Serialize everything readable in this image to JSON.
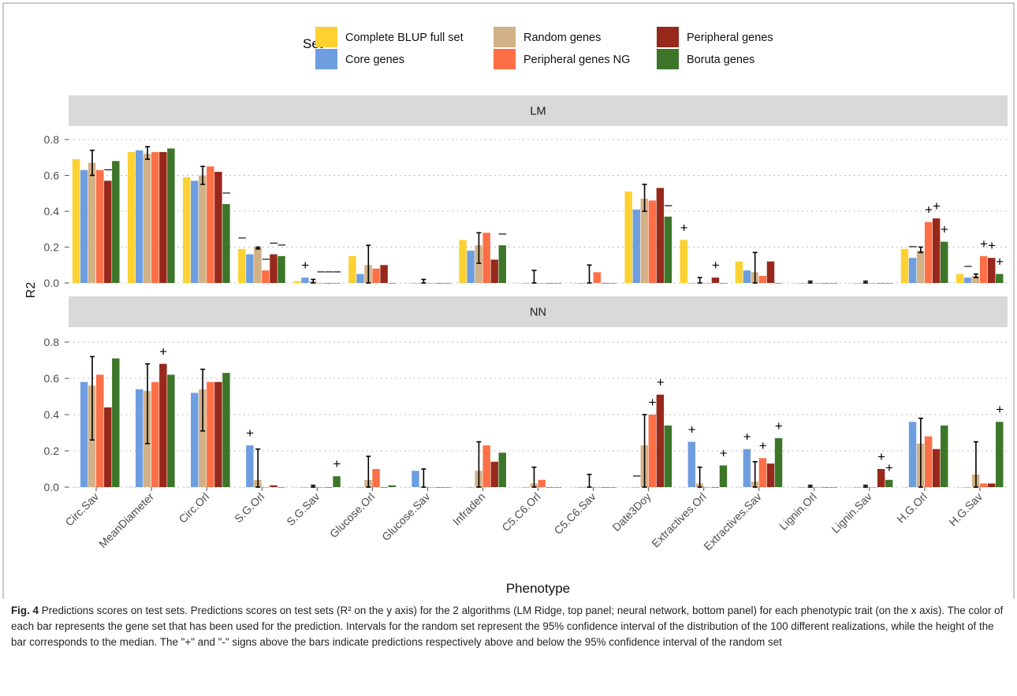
{
  "figure": {
    "caption_label": "Fig. 4",
    "caption_text": "Predictions scores on test sets. Predictions scores on test sets (R² on the y axis) for the 2 algorithms (LM Ridge, top panel; neural network, bottom panel) for each phenotypic trait (on the x axis). The color of each bar represents the gene set that has been used for the prediction. Intervals for the random set represent the 95% confidence interval of the distribution of the 100 different realizations, while the height of the bar corresponds to the median. The \"+\" and \"-\" signs above the bars indicate predictions respectively above and below the 95% confidence interval of the random set"
  },
  "chart_data": {
    "type": "bar",
    "legend_title": "Set",
    "legend_position": "top",
    "xlabel": "Phenotype",
    "ylabel": "R2",
    "ylim": [
      0,
      0.8
    ],
    "yticks": [
      "0.0",
      "0.2",
      "0.4",
      "0.6",
      "0.8"
    ],
    "grid": true,
    "categories": [
      "Circ.Sav",
      "MeanDiameter",
      "Circ.Orl",
      "S.G.Orl",
      "S.G.Sav",
      "Glucose.Orl",
      "Glucose.Sav",
      "Infraden",
      "C5.C6.Orl",
      "C5.C6.Sav",
      "Date3Doy",
      "Extractives.Orl",
      "Extractives.Sav",
      "Lignin.Orl",
      "Lignin.Sav",
      "H.G.Orl",
      "H.G.Sav"
    ],
    "series_order": [
      "Complete BLUP full set",
      "Core genes",
      "Random genes",
      "Peripheral genes NG",
      "Peripheral genes",
      "Boruta genes"
    ],
    "legend": [
      {
        "name": "Complete BLUP full set",
        "color": "#fcd131"
      },
      {
        "name": "Core genes",
        "color": "#6e9ee0"
      },
      {
        "name": "Random genes",
        "color": "#d2b187"
      },
      {
        "name": "Peripheral genes NG",
        "color": "#fd6f46"
      },
      {
        "name": "Peripheral genes",
        "color": "#97281b"
      },
      {
        "name": "Boruta genes",
        "color": "#3d7629"
      }
    ],
    "panels": [
      {
        "title": "LM",
        "values": [
          [
            0.69,
            0.63,
            0.67,
            0.63,
            0.57,
            0.68
          ],
          [
            0.73,
            0.74,
            0.72,
            0.73,
            0.73,
            0.75
          ],
          [
            0.59,
            0.57,
            0.6,
            0.65,
            0.62,
            0.44
          ],
          [
            0.19,
            0.16,
            0.2,
            0.07,
            0.16,
            0.15
          ],
          [
            0.01,
            0.03,
            0.01,
            0.0,
            0.0,
            0.0
          ],
          [
            0.15,
            0.05,
            0.1,
            0.08,
            0.1,
            0.0
          ],
          [
            0.0,
            0.0,
            0.0,
            0.0,
            0.0,
            0.0
          ],
          [
            0.24,
            0.18,
            0.21,
            0.28,
            0.13,
            0.21
          ],
          [
            0.0,
            0.0,
            0.0,
            0.0,
            0.0,
            0.0
          ],
          [
            0.0,
            0.0,
            0.0,
            0.06,
            0.0,
            0.0
          ],
          [
            0.51,
            0.41,
            0.47,
            0.46,
            0.53,
            0.37
          ],
          [
            0.24,
            0.0,
            0.0,
            0.0,
            0.03,
            0.0
          ],
          [
            0.12,
            0.07,
            0.06,
            0.04,
            0.12,
            0.0
          ],
          [
            0.0,
            0.0,
            0.0,
            0.0,
            0.0,
            0.0
          ],
          [
            0.0,
            0.0,
            0.0,
            0.0,
            0.0,
            0.0
          ],
          [
            0.19,
            0.14,
            0.18,
            0.34,
            0.36,
            0.23
          ],
          [
            0.05,
            0.03,
            0.04,
            0.15,
            0.14,
            0.05
          ]
        ],
        "random_ci": [
          [
            0.6,
            0.74
          ],
          [
            0.69,
            0.76
          ],
          [
            0.55,
            0.65
          ],
          [
            0.19,
            0.2
          ],
          [
            0.0,
            0.02
          ],
          [
            0.0,
            0.21
          ],
          [
            0.0,
            0.02
          ],
          [
            0.11,
            0.28
          ],
          [
            0.0,
            0.07
          ],
          [
            0.0,
            0.1
          ],
          [
            0.4,
            0.55
          ],
          [
            0.0,
            0.03
          ],
          [
            0.0,
            0.17
          ],
          [
            0.0,
            0.01
          ],
          [
            0.0,
            0.01
          ],
          [
            0.17,
            0.2
          ],
          [
            0.03,
            0.05
          ]
        ],
        "signs": [
          [
            [
              4,
              "-"
            ]
          ],
          [],
          [
            [
              5,
              "-"
            ]
          ],
          [
            [
              0,
              "-"
            ],
            [
              3,
              "-"
            ],
            [
              4,
              "-"
            ],
            [
              5,
              "-"
            ]
          ],
          [
            [
              1,
              "+"
            ],
            [
              3,
              "-"
            ],
            [
              4,
              "-"
            ],
            [
              5,
              "-"
            ]
          ],
          [],
          [],
          [
            [
              5,
              "-"
            ]
          ],
          [],
          [],
          [
            [
              5,
              "-"
            ]
          ],
          [
            [
              0,
              "+"
            ],
            [
              4,
              "+"
            ]
          ],
          [],
          [],
          [],
          [
            [
              1,
              "-"
            ],
            [
              3,
              "+"
            ],
            [
              4,
              "+"
            ],
            [
              5,
              "+"
            ]
          ],
          [
            [
              1,
              "-"
            ],
            [
              3,
              "+"
            ],
            [
              4,
              "+"
            ],
            [
              5,
              "+"
            ]
          ]
        ]
      },
      {
        "title": "NN",
        "values": [
          [
            0.0,
            0.58,
            0.56,
            0.62,
            0.44,
            0.71
          ],
          [
            0.0,
            0.54,
            0.53,
            0.58,
            0.68,
            0.62
          ],
          [
            0.0,
            0.52,
            0.54,
            0.58,
            0.58,
            0.63
          ],
          [
            0.0,
            0.23,
            0.04,
            0.0,
            0.01,
            0.0
          ],
          [
            0.0,
            0.0,
            0.0,
            0.0,
            0.0,
            0.06
          ],
          [
            0.0,
            0.0,
            0.04,
            0.1,
            0.0,
            0.01
          ],
          [
            0.0,
            0.09,
            0.0,
            0.0,
            0.0,
            0.0
          ],
          [
            0.0,
            0.0,
            0.09,
            0.23,
            0.14,
            0.19
          ],
          [
            0.0,
            0.0,
            0.02,
            0.04,
            0.0,
            0.0
          ],
          [
            0.0,
            0.0,
            0.0,
            0.0,
            0.0,
            0.0
          ],
          [
            0.0,
            0.0,
            0.23,
            0.4,
            0.51,
            0.34
          ],
          [
            0.0,
            0.25,
            0.02,
            0.0,
            0.0,
            0.12
          ],
          [
            0.0,
            0.21,
            0.03,
            0.16,
            0.13,
            0.27
          ],
          [
            0.0,
            0.0,
            0.0,
            0.0,
            0.0,
            0.0
          ],
          [
            0.0,
            0.0,
            0.0,
            0.0,
            0.1,
            0.04
          ],
          [
            0.0,
            0.36,
            0.24,
            0.28,
            0.21,
            0.34
          ],
          [
            0.0,
            0.0,
            0.07,
            0.02,
            0.02,
            0.36
          ]
        ],
        "random_ci": [
          [
            0.26,
            0.72
          ],
          [
            0.24,
            0.68
          ],
          [
            0.31,
            0.65
          ],
          [
            0.0,
            0.21
          ],
          [
            0.0,
            0.01
          ],
          [
            0.0,
            0.17
          ],
          [
            0.0,
            0.1
          ],
          [
            0.0,
            0.25
          ],
          [
            0.0,
            0.11
          ],
          [
            0.0,
            0.07
          ],
          [
            0.0,
            0.4
          ],
          [
            0.0,
            0.11
          ],
          [
            0.0,
            0.14
          ],
          [
            0.0,
            0.01
          ],
          [
            0.0,
            0.01
          ],
          [
            0.0,
            0.38
          ],
          [
            0.0,
            0.25
          ]
        ],
        "signs": [
          [],
          [
            [
              4,
              "+"
            ]
          ],
          [],
          [
            [
              1,
              "+"
            ]
          ],
          [
            [
              5,
              "+"
            ]
          ],
          [],
          [],
          [],
          [],
          [],
          [
            [
              1,
              "-"
            ],
            [
              3,
              "+"
            ],
            [
              4,
              "+"
            ]
          ],
          [
            [
              1,
              "+"
            ],
            [
              5,
              "+"
            ]
          ],
          [
            [
              1,
              "+"
            ],
            [
              3,
              "+"
            ],
            [
              5,
              "+"
            ]
          ],
          [],
          [
            [
              4,
              "+"
            ],
            [
              5,
              "+"
            ]
          ],
          [],
          [
            [
              5,
              "+"
            ]
          ]
        ]
      }
    ]
  }
}
